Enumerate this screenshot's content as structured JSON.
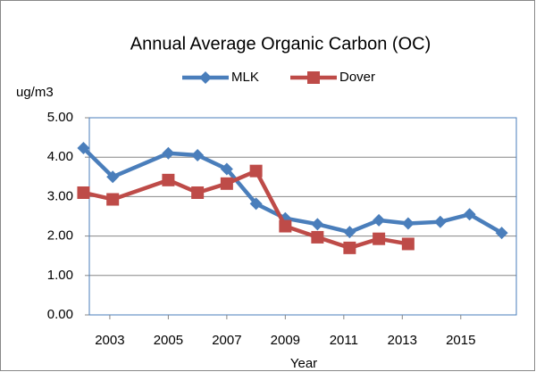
{
  "chart_data": {
    "type": "line",
    "title": "Annual Average Organic Carbon (OC)",
    "ylabel": "ug/m3",
    "xlabel": "Year",
    "series": [
      {
        "name": "MLK",
        "color": "#4a7ebb",
        "marker": "diamond",
        "x": [
          2002.1,
          2003.1,
          2005.0,
          2006.0,
          2007.0,
          2008.0,
          2009.0,
          2010.1,
          2011.2,
          2012.2,
          2013.2,
          2014.3,
          2015.3,
          2016.4
        ],
        "values": [
          4.23,
          3.5,
          4.1,
          4.05,
          3.7,
          2.82,
          2.45,
          2.3,
          2.1,
          2.4,
          2.32,
          2.36,
          2.55,
          2.08
        ]
      },
      {
        "name": "Dover",
        "color": "#be4b48",
        "marker": "square",
        "x": [
          2002.1,
          2003.1,
          2005.0,
          2006.0,
          2007.0,
          2008.0,
          2009.0,
          2010.1,
          2011.2,
          2012.2,
          2013.2
        ],
        "values": [
          3.1,
          2.93,
          3.42,
          3.1,
          3.33,
          3.65,
          2.25,
          1.97,
          1.7,
          1.93,
          1.8
        ]
      }
    ],
    "xlim": [
      2002.3,
      2016.9
    ],
    "xticks": [
      2003,
      2005,
      2007,
      2009,
      2011,
      2013,
      2015
    ],
    "ylim": [
      0,
      5
    ],
    "yticks": [
      {
        "value": 0,
        "label": "0.00"
      },
      {
        "value": 1,
        "label": "1.00"
      },
      {
        "value": 2,
        "label": "2.00"
      },
      {
        "value": 3,
        "label": "3.00"
      },
      {
        "value": 4,
        "label": "4.00"
      },
      {
        "value": 5,
        "label": "5.00"
      }
    ],
    "grid": true
  }
}
